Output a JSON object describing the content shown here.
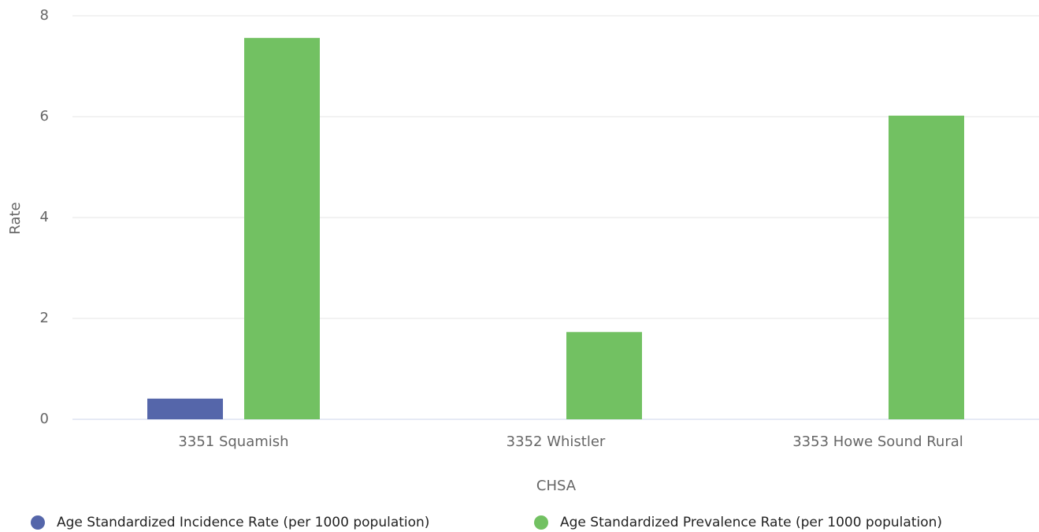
{
  "chart_data": {
    "type": "bar",
    "categories": [
      "3351 Squamish",
      "3352 Whistler",
      "3353 Howe Sound Rural"
    ],
    "series": [
      {
        "name": "Age Standardized Incidence Rate (per 1000 population)",
        "color": "#5566aa",
        "values": [
          0.41,
          null,
          null
        ]
      },
      {
        "name": "Age Standardized Prevalence Rate (per 1000 population)",
        "color": "#72c162",
        "values": [
          7.56,
          1.73,
          6.02
        ]
      }
    ],
    "x_label": "CHSA",
    "y_label": "Rate",
    "ylim": [
      0,
      8
    ],
    "yticks": [
      0,
      2,
      4,
      6,
      8
    ],
    "grid": true,
    "legend": "bottom"
  }
}
